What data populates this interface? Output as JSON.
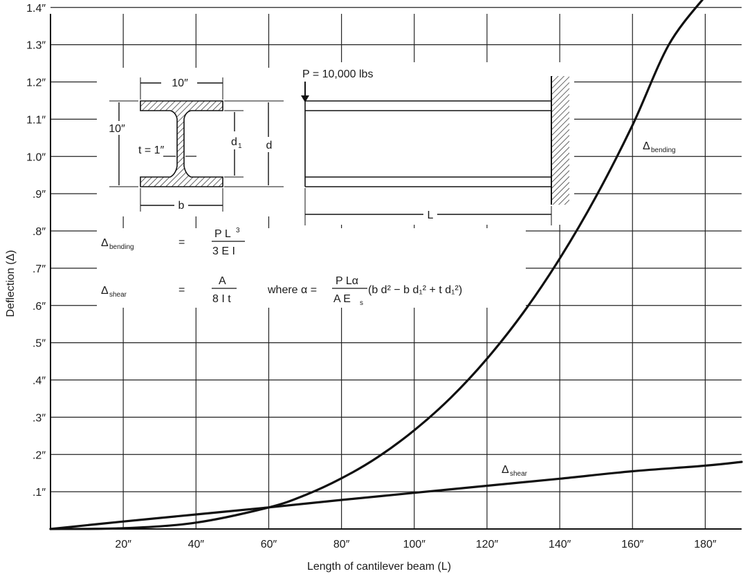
{
  "chart_data": {
    "type": "line",
    "title": "",
    "xlabel": "Length of cantilever beam (L)",
    "ylabel": "Deflection (Δ)",
    "xlim": [
      0,
      190
    ],
    "ylim": [
      0,
      1.42
    ],
    "x_ticks": [
      {
        "value": 20,
        "label": "20″"
      },
      {
        "value": 40,
        "label": "40″"
      },
      {
        "value": 60,
        "label": "60″"
      },
      {
        "value": 80,
        "label": "80″"
      },
      {
        "value": 100,
        "label": "100″"
      },
      {
        "value": 120,
        "label": "120″"
      },
      {
        "value": 140,
        "label": "140″"
      },
      {
        "value": 160,
        "label": "160″"
      },
      {
        "value": 180,
        "label": "180″"
      }
    ],
    "y_ticks": [
      {
        "value": 0.1,
        "label": ".1″"
      },
      {
        "value": 0.2,
        "label": ".2″"
      },
      {
        "value": 0.3,
        "label": ".3″"
      },
      {
        "value": 0.4,
        "label": ".4″"
      },
      {
        "value": 0.5,
        "label": ".5″"
      },
      {
        "value": 0.6,
        "label": ".6″"
      },
      {
        "value": 0.7,
        "label": ".7″"
      },
      {
        "value": 0.8,
        "label": ".8″"
      },
      {
        "value": 0.9,
        "label": ".9″"
      },
      {
        "value": 1.0,
        "label": "1.0″"
      },
      {
        "value": 1.1,
        "label": "1.1″"
      },
      {
        "value": 1.2,
        "label": "1.2″"
      },
      {
        "value": 1.3,
        "label": "1.3″"
      },
      {
        "value": 1.4,
        "label": "1.4″"
      }
    ],
    "grid": true,
    "series": [
      {
        "name": "Δbending",
        "x": [
          0,
          20,
          40,
          60,
          70,
          80,
          90,
          100,
          110,
          120,
          130,
          140,
          150,
          160,
          170,
          180
        ],
        "values": [
          0.0,
          0.002,
          0.017,
          0.058,
          0.091,
          0.136,
          0.193,
          0.265,
          0.352,
          0.457,
          0.581,
          0.726,
          0.893,
          1.084,
          1.3,
          1.43
        ]
      },
      {
        "name": "Δshear",
        "x": [
          0,
          20,
          40,
          60,
          80,
          100,
          120,
          140,
          160,
          180,
          190
        ],
        "values": [
          0.0,
          0.02,
          0.039,
          0.058,
          0.078,
          0.097,
          0.116,
          0.135,
          0.155,
          0.17,
          0.18
        ]
      }
    ],
    "annotations": {
      "dims": {
        "width_top": "10″",
        "depth_left": "10″",
        "web": "t = 1″",
        "d1": "d",
        "d1_sub": "1",
        "d": "d",
        "b": "b",
        "L": "L"
      },
      "load": "P = 10,000 lbs",
      "eq_bending": {
        "lhs": "Δ",
        "lhs_sub": "bending",
        "eq": "=",
        "num": "P L",
        "num_sup": "3",
        "den": "3 E I"
      },
      "eq_shear": {
        "lhs": "Δ",
        "lhs_sub": "shear",
        "eq": "=",
        "num": "A",
        "den": "8 I t",
        "where": "where α =",
        "num2": "P Lα",
        "den2": "A E",
        "den2_sub": "s",
        "expr": "(b d² − b d₁² + t d₁²)"
      },
      "label_bending": {
        "main": "Δ",
        "sub": "bending"
      },
      "label_shear": {
        "main": "Δ",
        "sub": "shear"
      }
    }
  }
}
